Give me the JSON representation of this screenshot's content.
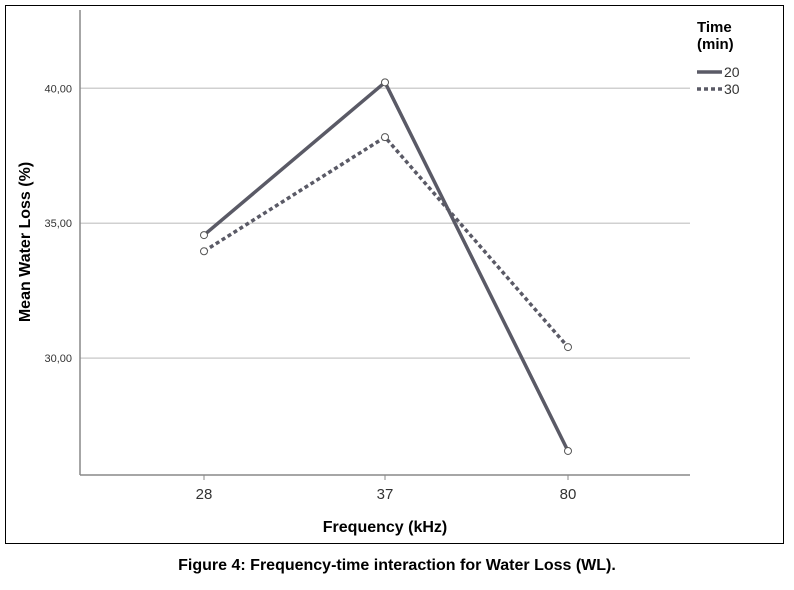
{
  "chart_data": {
    "type": "line",
    "categories": [
      "28",
      "37",
      "80"
    ],
    "xlabel": "Frequency (kHz)",
    "ylabel": "Mean Water Loss (%)",
    "ylim": [
      25.67,
      42.9
    ],
    "yticks": [
      30,
      35,
      40
    ],
    "ytick_labels": [
      "30,00",
      "35,00",
      "40,00"
    ],
    "grid": "horizontal",
    "legend_title": "Time (min)",
    "legend_title_lines": [
      "Time",
      "(min)"
    ],
    "legend_position": "top-right",
    "series": [
      {
        "name": "20",
        "values": [
          34.56,
          40.22,
          26.56
        ],
        "style": "solid",
        "color": "#5a5a66"
      },
      {
        "name": "30",
        "values": [
          33.96,
          38.19,
          30.41
        ],
        "style": "dotted",
        "color": "#5a5a66"
      }
    ]
  },
  "caption": "Figure 4: Frequency-time interaction for Water Loss (WL)."
}
